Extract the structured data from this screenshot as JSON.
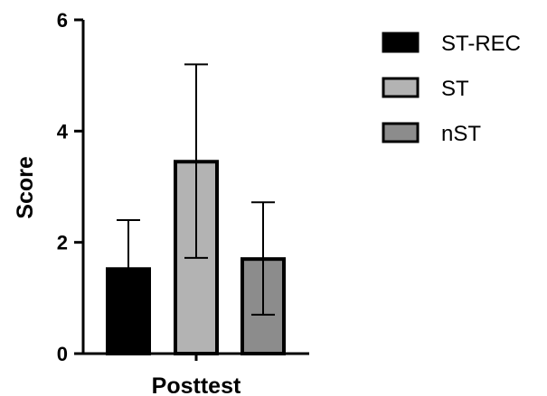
{
  "chart_data": {
    "type": "bar",
    "title": "",
    "xlabel": "Posttest",
    "ylabel": "Score",
    "ylim": [
      0,
      6
    ],
    "yticks": [
      0,
      2,
      4,
      6
    ],
    "categories": [
      "Posttest"
    ],
    "series": [
      {
        "name": "ST-REC",
        "values": [
          1.52
        ],
        "error_upper": [
          2.4
        ],
        "error_lower": [
          1.52
        ],
        "color": "#000000"
      },
      {
        "name": "ST",
        "values": [
          3.45
        ],
        "error_upper": [
          5.2
        ],
        "error_lower": [
          1.72
        ],
        "color": "#b3b3b3"
      },
      {
        "name": "nST",
        "values": [
          1.7
        ],
        "error_upper": [
          2.72
        ],
        "error_lower": [
          0.7
        ],
        "color": "#8c8c8c"
      }
    ],
    "grid": false,
    "legend": "right"
  }
}
